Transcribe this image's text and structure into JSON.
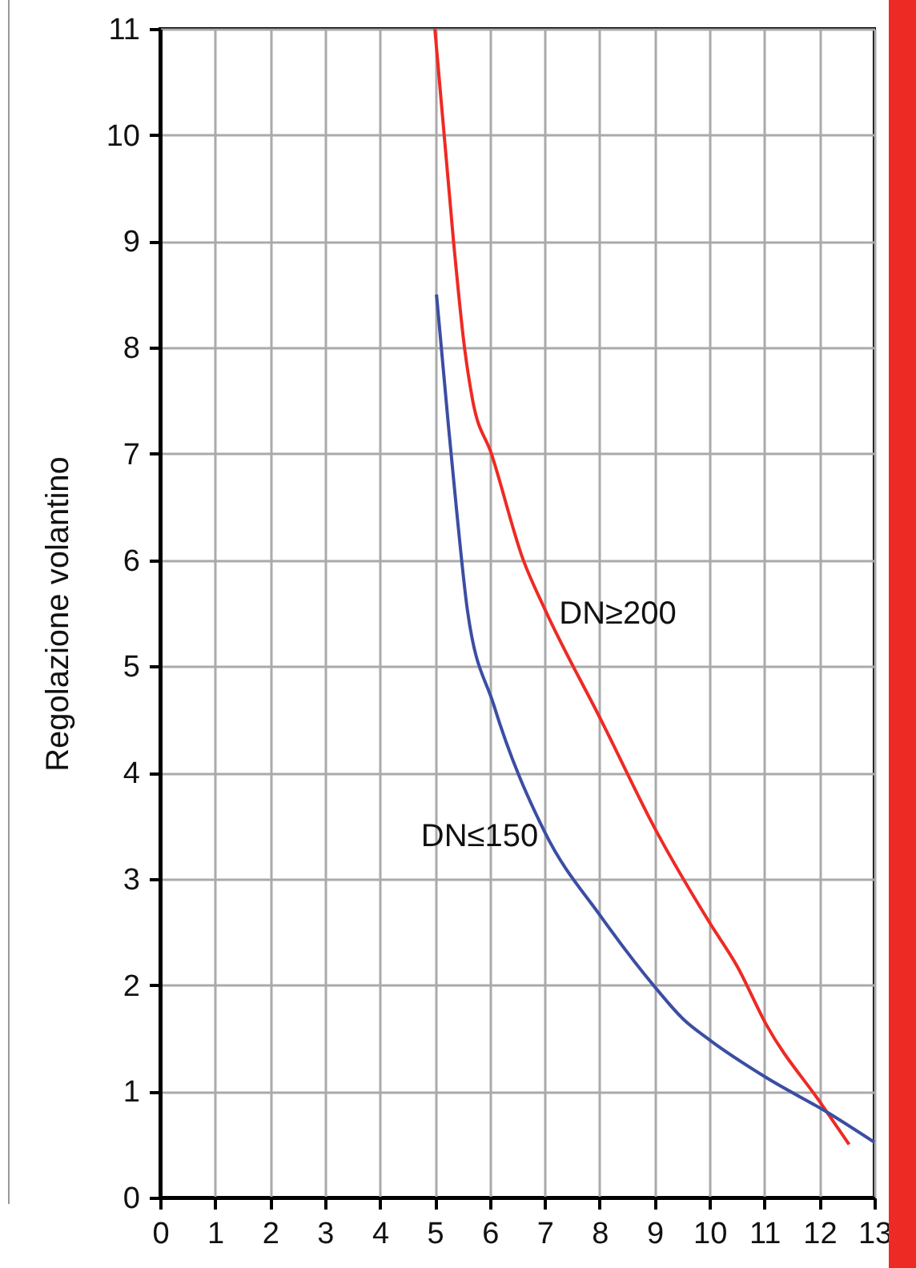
{
  "chart_data": {
    "type": "line",
    "ylabel": "Regolazione volantino",
    "xlim": [
      0,
      13
    ],
    "xticks": [
      0,
      1,
      2,
      3,
      4,
      5,
      6,
      7,
      8,
      9,
      10,
      11,
      12,
      13
    ],
    "ylim": [
      0,
      11
    ],
    "yticks": [
      0,
      1,
      2,
      3,
      4,
      5,
      6,
      7,
      8,
      9,
      10,
      11
    ],
    "grid": true,
    "marker": "none",
    "line_style": "solid",
    "series": [
      {
        "name": "DN≥200",
        "color": "#ee2a24",
        "x": [
          5.0,
          5.34,
          5.54,
          5.69,
          6.03,
          6.61,
          7.0,
          8.03,
          9.04,
          10.01,
          10.5,
          11.03,
          12.05,
          12.54
        ],
        "values": [
          11.0,
          9.0,
          8.0,
          7.5,
          7.0,
          6.0,
          5.54,
          4.49,
          3.44,
          2.58,
          2.18,
          1.63,
          0.87,
          0.5
        ]
      },
      {
        "name": "DN≤150",
        "color": "#3b4ea3",
        "x": [
          5.03,
          5.25,
          5.39,
          5.59,
          6.07,
          7.0,
          8.03,
          9.04,
          9.52,
          10.01,
          11.03,
          12.15,
          13.0
        ],
        "values": [
          8.5,
          7.25,
          6.5,
          5.54,
          4.64,
          3.44,
          2.64,
          1.96,
          1.68,
          1.48,
          1.13,
          0.8,
          0.52
        ]
      }
    ]
  }
}
